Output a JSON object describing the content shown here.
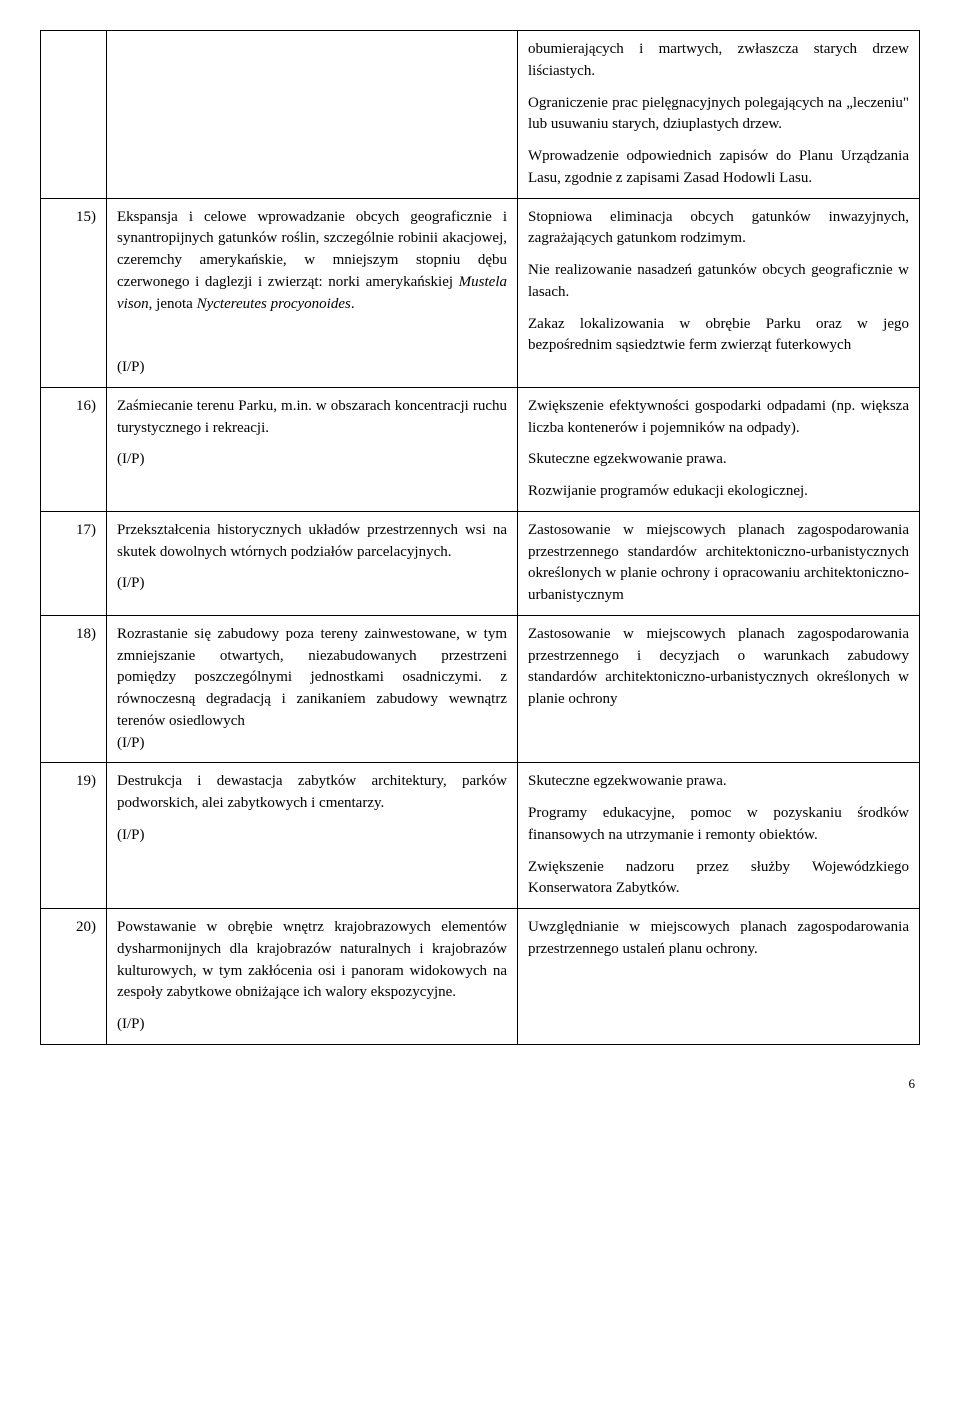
{
  "rows": [
    {
      "num": "",
      "left_paragraphs": [],
      "right_paragraphs": [
        "obumierających i martwych, zwłaszcza starych drzew liściastych.",
        "Ograniczenie prac pielęgnacyjnych polegających na „leczeniu\" lub usuwaniu starych, dziuplastych drzew.",
        "Wprowadzenie odpowiednich zapisów do Planu Urządzania Lasu, zgodnie z zapisami Zasad Hodowli Lasu."
      ]
    },
    {
      "num": "15)",
      "left_paragraphs": [
        "Ekspansja i celowe wprowadzanie obcych geograficznie i synantropijnych gatunków roślin, szczególnie robinii akacjowej, czeremchy amerykańskie, w mniejszym stopniu dębu czerwonego i daglezji i zwierząt: norki amerykańskiej <i>Mustela vison</i>, jenota <i>Nyctereutes procyonoides</i>.",
        "",
        "(I/P)"
      ],
      "right_paragraphs": [
        "Stopniowa eliminacja obcych gatunków inwazyjnych, zagrażających gatunkom rodzimym.",
        "Nie realizowanie nasadzeń gatunków obcych geograficznie w lasach.",
        "Zakaz lokalizowania w obrębie Parku oraz w jego bezpośrednim sąsiedztwie ferm zwierząt futerkowych"
      ]
    },
    {
      "num": "16)",
      "left_paragraphs": [
        "Zaśmiecanie terenu Parku, m.in. w obszarach koncentracji ruchu turystycznego i rekreacji.",
        "(I/P)"
      ],
      "right_paragraphs": [
        "Zwiększenie efektywności gospodarki odpadami (np. większa liczba kontenerów i pojemników na odpady).",
        "Skuteczne egzekwowanie prawa.",
        "Rozwijanie programów edukacji ekologicznej."
      ]
    },
    {
      "num": "17)",
      "left_paragraphs": [
        "Przekształcenia historycznych układów przestrzennych wsi na skutek dowolnych wtórnych podziałów parcelacyjnych.",
        "(I/P)"
      ],
      "right_paragraphs": [
        "Zastosowanie w miejscowych planach zagospodarowania przestrzennego standardów architektoniczno-urbanistycznych określonych w planie ochrony i opracowaniu architektoniczno-urbanistycznym"
      ]
    },
    {
      "num": "18)",
      "left_paragraphs": [
        "Rozrastanie się zabudowy poza tereny zainwestowane, w tym zmniejszanie otwartych, niezabudowanych przestrzeni pomiędzy poszczególnymi jednostkami osadniczymi. z równoczesną degradacją i zanikaniem zabudowy wewnątrz terenów osiedlowych<br>(I/P)"
      ],
      "right_paragraphs": [
        "Zastosowanie w miejscowych planach zagospodarowania przestrzennego i decyzjach o warunkach zabudowy standardów architektoniczno-urbanistycznych określonych w planie ochrony"
      ]
    },
    {
      "num": "19)",
      "left_paragraphs": [
        "Destrukcja i dewastacja zabytków architektury, parków podworskich, alei zabytkowych i cmentarzy.",
        "(I/P)"
      ],
      "right_paragraphs": [
        "Skuteczne egzekwowanie prawa.",
        "Programy edukacyjne, pomoc w pozyskaniu środków finansowych na utrzymanie i remonty obiektów.",
        "Zwiększenie nadzoru przez służby Wojewódzkiego Konserwatora Zabytków."
      ]
    },
    {
      "num": "20)",
      "left_paragraphs": [
        "Powstawanie w obrębie wnętrz krajobrazowych elementów dysharmonijnych dla krajobrazów naturalnych i krajobrazów kulturowych, w tym zakłócenia osi i panoram widokowych na zespoły zabytkowe obniżające ich walory ekspozycyjne.",
        "(I/P)"
      ],
      "right_paragraphs": [
        "Uwzględnianie w miejscowych planach zagospodarowania przestrzennego ustaleń planu ochrony."
      ]
    }
  ],
  "page_number": "6"
}
